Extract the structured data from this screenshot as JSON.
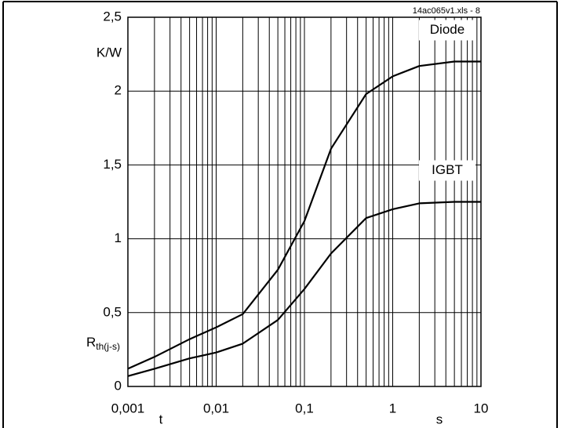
{
  "chart_data": {
    "type": "line",
    "annotation": "14ac065v1.xls - 8",
    "yunit": "K/W",
    "ylabel_symbol": "R",
    "ylabel_subscript": "th(j-s)",
    "xlabel": "t",
    "xunit": "s",
    "xscale": "log",
    "grid": true,
    "x": [
      0.001,
      0.002,
      0.005,
      0.01,
      0.02,
      0.05,
      0.1,
      0.2,
      0.5,
      1,
      2,
      5,
      10
    ],
    "series": [
      {
        "name": "Diode",
        "color": "#000000",
        "values": [
          0.12,
          0.2,
          0.32,
          0.4,
          0.49,
          0.79,
          1.12,
          1.61,
          1.98,
          2.1,
          2.17,
          2.2,
          2.2
        ]
      },
      {
        "name": "IGBT",
        "color": "#000000",
        "values": [
          0.07,
          0.12,
          0.19,
          0.23,
          0.29,
          0.45,
          0.66,
          0.9,
          1.14,
          1.2,
          1.24,
          1.25,
          1.25
        ]
      }
    ],
    "xlim": [
      0.001,
      10
    ],
    "xticks": [
      {
        "value": 0.001,
        "label": "0,001"
      },
      {
        "value": 0.01,
        "label": "0,01"
      },
      {
        "value": 0.1,
        "label": "0,1"
      },
      1,
      10
    ],
    "xminorticks": [
      0.002,
      0.003,
      0.004,
      0.005,
      0.006,
      0.007,
      0.008,
      0.009,
      0.02,
      0.03,
      0.04,
      0.05,
      0.06,
      0.07,
      0.08,
      0.09,
      0.2,
      0.3,
      0.4,
      0.5,
      0.6,
      0.7,
      0.8,
      0.9,
      2,
      3,
      4,
      5,
      6,
      7,
      8,
      9
    ],
    "ylim": [
      0,
      2.5
    ],
    "yticks": [
      0,
      {
        "value": 0.5,
        "label": "0,5"
      },
      1,
      {
        "value": 1.5,
        "label": "1,5"
      },
      2,
      {
        "value": 2.5,
        "label": "2,5"
      }
    ]
  }
}
